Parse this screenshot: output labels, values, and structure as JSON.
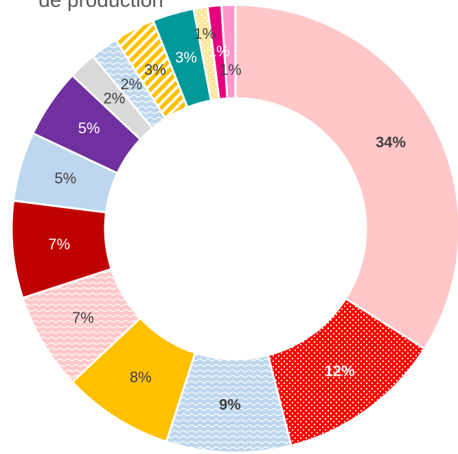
{
  "chart_data": {
    "type": "donut",
    "title": "de production",
    "values": [
      34,
      12,
      9,
      8,
      7,
      7,
      5,
      5,
      2,
      2,
      3,
      3,
      1,
      1,
      1
    ],
    "value_labels": [
      "34%",
      "12%",
      "9%",
      "8%",
      "7%",
      "7%",
      "5%",
      "5%",
      "2%",
      "2%",
      "3%",
      "3%",
      "1%",
      "1%",
      "1%"
    ],
    "colors": [
      "#ffc7c7",
      "#ff0000",
      "#bdd7ee",
      "#ffc000",
      "#ffc7c7",
      "#c00000",
      "#bdd7ee",
      "#7030a0",
      "#d9d9d9",
      "#bdd7ee",
      "#ffc000",
      "#009999",
      "#ffe699",
      "#e6007e",
      "#ff99cc"
    ],
    "patterns": [
      null,
      "dots",
      "waves",
      null,
      "waves",
      null,
      null,
      null,
      null,
      "waves",
      "stripes",
      null,
      "dots",
      null,
      null
    ]
  }
}
